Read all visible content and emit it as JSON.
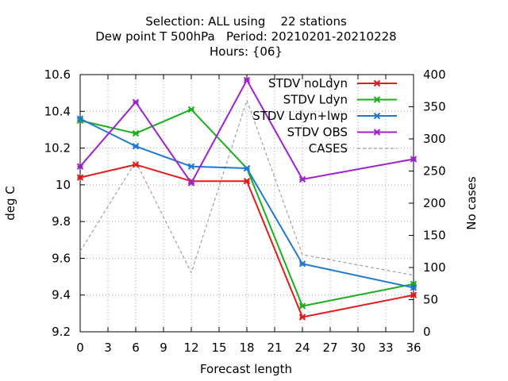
{
  "chart_data": {
    "type": "line",
    "title_lines": [
      "Selection: ALL using    22 stations",
      "Dew point T 500hPa   Period: 20210201-20210228",
      "Hours: {06}"
    ],
    "xlabel": "Forecast length",
    "ylabel": "deg C",
    "y2label": "No cases",
    "x_ticks": [
      "0",
      "3",
      "6",
      "9",
      "12",
      "15",
      "18",
      "21",
      "24",
      "27",
      "30",
      "33",
      "36"
    ],
    "y_ticks": [
      "9.2",
      "9.4",
      "9.6",
      "9.8",
      "10",
      "10.2",
      "10.4",
      "10.6"
    ],
    "y2_ticks": [
      "0",
      "50",
      "100",
      "150",
      "200",
      "250",
      "300",
      "350",
      "400"
    ],
    "xlim": [
      0,
      36
    ],
    "ylim": [
      9.2,
      10.6
    ],
    "y2lim": [
      0,
      400
    ],
    "grid": true,
    "legend_position": "top-right",
    "series": [
      {
        "name": "STDV noLdyn",
        "axis": "y",
        "color": "#e41a1c",
        "style": "solid",
        "marker": true,
        "x": [
          0,
          6,
          12,
          18,
          24,
          36
        ],
        "values": [
          10.04,
          10.11,
          10.02,
          10.02,
          9.28,
          9.4
        ]
      },
      {
        "name": "STDV Ldyn",
        "axis": "y",
        "color": "#1aaf1a",
        "style": "solid",
        "marker": true,
        "x": [
          0,
          6,
          12,
          18,
          24,
          36
        ],
        "values": [
          10.35,
          10.28,
          10.41,
          10.09,
          9.34,
          9.46
        ]
      },
      {
        "name": "STDV Ldyn+lwp",
        "axis": "y",
        "color": "#1f78d1",
        "style": "solid",
        "marker": true,
        "x": [
          0,
          6,
          12,
          18,
          24,
          36
        ],
        "values": [
          10.36,
          10.21,
          10.1,
          10.09,
          9.57,
          9.44
        ]
      },
      {
        "name": "STDV OBS",
        "axis": "y",
        "color": "#a020d0",
        "style": "solid",
        "marker": true,
        "x": [
          0,
          6,
          12,
          18,
          24,
          36
        ],
        "values": [
          10.1,
          10.45,
          10.01,
          10.57,
          10.03,
          10.14
        ]
      },
      {
        "name": "CASES",
        "axis": "y2",
        "color": "#a0a0a0",
        "style": "dashed",
        "marker": false,
        "x": [
          0,
          6,
          12,
          18,
          24,
          36
        ],
        "values": [
          125,
          265,
          92,
          360,
          120,
          88
        ]
      }
    ]
  }
}
